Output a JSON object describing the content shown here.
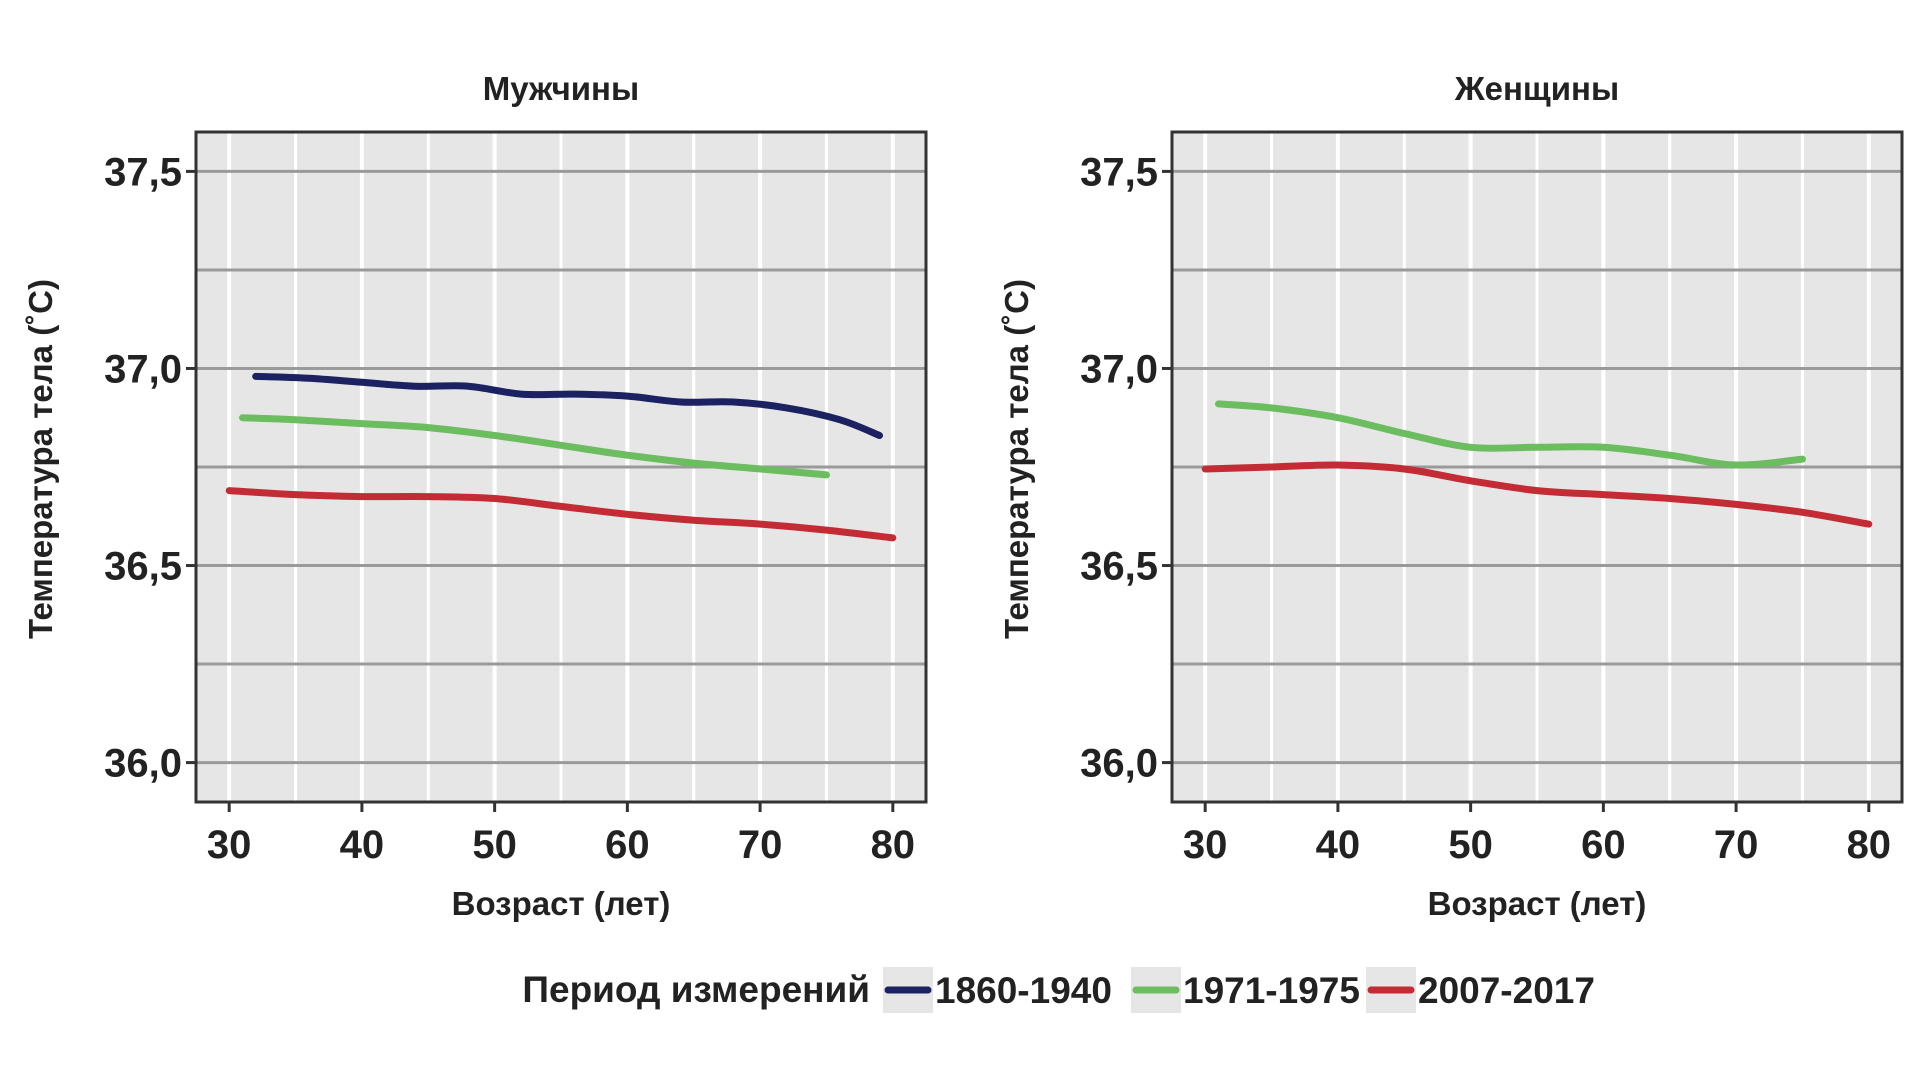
{
  "colors": {
    "panel_bg": "#e6e6e6",
    "grid_major": "#9a9a9a",
    "grid_minor": "#ffffff",
    "frame": "#333333",
    "series_1860_1940": "#1c2161",
    "series_1971_1975": "#6cbd5f",
    "series_2007_2017": "#c42c35"
  },
  "legend": {
    "title": "Период измерений",
    "items": [
      "1860-1940",
      "1971-1975",
      "2007-2017"
    ]
  },
  "chart_data": [
    {
      "type": "line",
      "title": "Мужчины",
      "xlabel": "Возраст (лет)",
      "ylabel": "Температура тела (˚C)",
      "xlim": [
        27.5,
        82.5
      ],
      "ylim": [
        35.9,
        37.6
      ],
      "xticks": [
        30,
        40,
        50,
        60,
        70,
        80
      ],
      "xtick_labels": [
        "30",
        "40",
        "50",
        "60",
        "70",
        "80"
      ],
      "yticks": [
        36.0,
        36.5,
        37.0,
        37.5
      ],
      "ytick_labels": [
        "36,0",
        "36,5",
        "37,0",
        "37,5"
      ],
      "y_minor_grid": [
        36.25,
        36.75,
        37.25
      ],
      "series": [
        {
          "name": "1860-1940",
          "x": [
            32,
            36,
            40,
            44,
            48,
            52,
            56,
            60,
            64,
            68,
            72,
            76,
            79
          ],
          "y": [
            36.98,
            36.975,
            36.965,
            36.955,
            36.955,
            36.935,
            36.935,
            36.93,
            36.915,
            36.915,
            36.9,
            36.87,
            36.83
          ]
        },
        {
          "name": "1971-1975",
          "x": [
            31,
            35,
            40,
            45,
            50,
            55,
            60,
            65,
            70,
            75
          ],
          "y": [
            36.875,
            36.87,
            36.86,
            36.85,
            36.83,
            36.805,
            36.78,
            36.76,
            36.745,
            36.73
          ]
        },
        {
          "name": "2007-2017",
          "x": [
            30,
            35,
            40,
            45,
            50,
            55,
            60,
            65,
            70,
            75,
            80
          ],
          "y": [
            36.69,
            36.68,
            36.675,
            36.675,
            36.67,
            36.65,
            36.63,
            36.615,
            36.605,
            36.59,
            36.57
          ]
        }
      ]
    },
    {
      "type": "line",
      "title": "Женщины",
      "xlabel": "Возраст (лет)",
      "ylabel": "Температура тела (˚C)",
      "xlim": [
        27.5,
        82.5
      ],
      "ylim": [
        35.9,
        37.6
      ],
      "xticks": [
        30,
        40,
        50,
        60,
        70,
        80
      ],
      "xtick_labels": [
        "30",
        "40",
        "50",
        "60",
        "70",
        "80"
      ],
      "yticks": [
        36.0,
        36.5,
        37.0,
        37.5
      ],
      "ytick_labels": [
        "36,0",
        "36,5",
        "37,0",
        "37,5"
      ],
      "y_minor_grid": [
        36.25,
        36.75,
        37.25
      ],
      "series": [
        {
          "name": "1971-1975",
          "x": [
            31,
            35,
            40,
            45,
            50,
            55,
            60,
            65,
            70,
            75
          ],
          "y": [
            36.91,
            36.9,
            36.875,
            36.835,
            36.8,
            36.8,
            36.8,
            36.78,
            36.755,
            36.77
          ]
        },
        {
          "name": "2007-2017",
          "x": [
            30,
            35,
            40,
            45,
            50,
            55,
            60,
            65,
            70,
            75,
            80
          ],
          "y": [
            36.745,
            36.75,
            36.755,
            36.745,
            36.715,
            36.69,
            36.68,
            36.67,
            36.655,
            36.635,
            36.605
          ]
        }
      ]
    }
  ]
}
